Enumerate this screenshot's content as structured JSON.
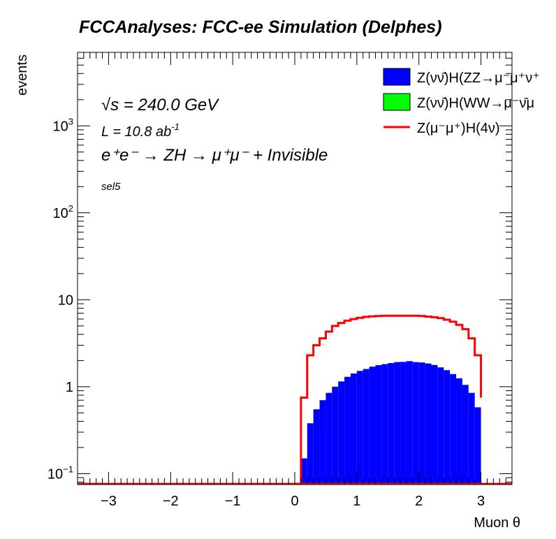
{
  "title": "FCCAnalyses: FCC-ee Simulation (Delphes)",
  "annotations": {
    "energy": "√s = 240.0 GeV",
    "lumi_base": "L = 10.8 ab",
    "lumi_exp": "-1",
    "process": "e⁺e⁻ → ZH → μ⁺μ⁻ + Invisible",
    "selection": "sel5"
  },
  "colors": {
    "zz_fill": "#0000ff",
    "ww_fill": "#00ff00",
    "h4nu_line": "#ff0000",
    "axis": "#000000"
  },
  "chart_data": {
    "type": "histogram",
    "title": "FCCAnalyses: FCC-ee Simulation (Delphes)",
    "xlabel": "Muon θ",
    "ylabel": "events",
    "xlim": [
      -3.5,
      3.5
    ],
    "ylim": [
      0.075,
      7000
    ],
    "yscale": "log",
    "grid": false,
    "legend_position": "top-right",
    "x_ticks": [
      "−3",
      "−2",
      "−1",
      "0",
      "1",
      "2",
      "3"
    ],
    "y_ticks": [
      {
        "base": "10",
        "exp": "−1",
        "value": 0.1
      },
      {
        "base": "1",
        "exp": "",
        "value": 1
      },
      {
        "base": "10",
        "exp": "",
        "value": 10
      },
      {
        "base": "10",
        "exp": "2",
        "value": 100
      },
      {
        "base": "10",
        "exp": "3",
        "value": 1000
      }
    ],
    "bin_edges": [
      0.1,
      0.2,
      0.3,
      0.4,
      0.5,
      0.6,
      0.7,
      0.8,
      0.9,
      1.0,
      1.1,
      1.2,
      1.3,
      1.4,
      1.5,
      1.6,
      1.7,
      1.8,
      1.9,
      2.0,
      2.1,
      2.2,
      2.3,
      2.4,
      2.5,
      2.6,
      2.7,
      2.8,
      2.9,
      3.0
    ],
    "series": [
      {
        "name": "Z(νν̄)H(ZZ→μ⁻μ⁺ν⁺",
        "style": "filled",
        "values": [
          0.15,
          0.38,
          0.55,
          0.7,
          0.85,
          1.0,
          1.15,
          1.3,
          1.42,
          1.52,
          1.6,
          1.7,
          1.77,
          1.82,
          1.87,
          1.92,
          1.93,
          1.97,
          1.92,
          1.9,
          1.85,
          1.78,
          1.67,
          1.55,
          1.4,
          1.25,
          1.05,
          0.85,
          0.58,
          0.33
        ]
      },
      {
        "name": "Z(νν̄)H(WW→μ⁻ν̄μ",
        "style": "filled",
        "values": []
      },
      {
        "name": "Z(μ⁻μ⁺)H(4ν)",
        "style": "line",
        "values": [
          0.75,
          2.3,
          3.0,
          3.6,
          4.3,
          5.0,
          5.4,
          5.75,
          6.0,
          6.2,
          6.35,
          6.45,
          6.5,
          6.55,
          6.55,
          6.55,
          6.55,
          6.55,
          6.55,
          6.5,
          6.4,
          6.3,
          6.15,
          5.9,
          5.6,
          5.15,
          4.6,
          3.6,
          2.3,
          0.75
        ]
      }
    ]
  }
}
